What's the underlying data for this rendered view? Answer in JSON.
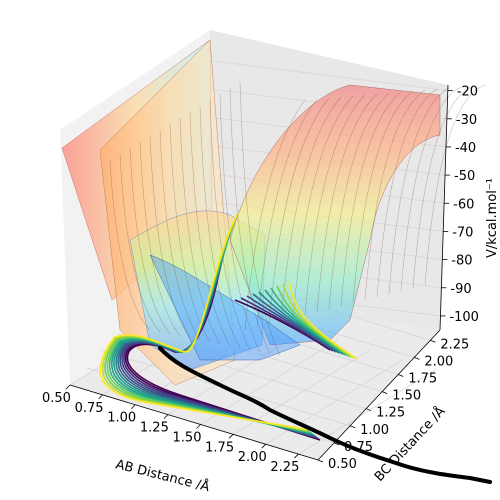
{
  "chart_data": {
    "type": "surface3d",
    "xlabel": "AB Distance /Å",
    "ylabel": "BC Distance /Å",
    "zlabel": "V/kcal.mol⁻¹",
    "x_ticks": [
      "0.50",
      "0.75",
      "1.00",
      "1.25",
      "1.50",
      "1.75",
      "2.00",
      "2.25"
    ],
    "y_ticks": [
      "0.50",
      "0.75",
      "1.00",
      "1.25",
      "1.50",
      "1.75",
      "2.00",
      "2.25"
    ],
    "z_ticks": [
      "-20",
      "-30",
      "-40",
      "-50",
      "-60",
      "-70",
      "-80",
      "-90",
      "-100"
    ],
    "xlim": [
      0.5,
      2.4
    ],
    "ylim": [
      0.5,
      2.4
    ],
    "zlim": [
      -105,
      -18
    ],
    "colormap_surface": "jet",
    "colormap_contours": "viridis",
    "grid": true,
    "trajectory": "black line along the floor contour plane",
    "colors": {
      "pane": "#f2f2f2",
      "grid": "#d9d9d9",
      "trajectory": "#000000"
    }
  }
}
